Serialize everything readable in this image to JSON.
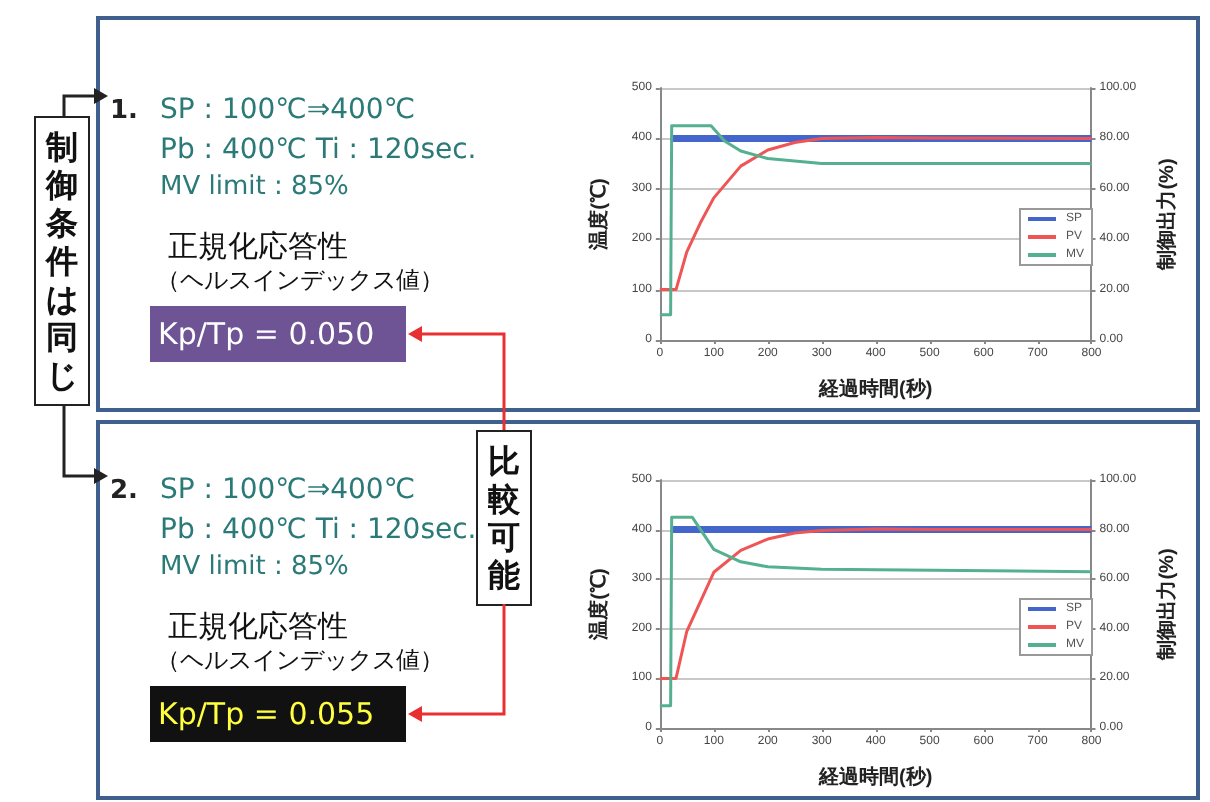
{
  "chart_data": [
    {
      "type": "other",
      "annotations": [
        "1.",
        "SP : 100℃⇒400℃",
        "Pb : 400℃  Ti : 120sec.",
        "MV limit : 85%",
        "正規化応答性",
        "（ヘルスインデックス値）",
        "Kp/Tp = 0.050",
        "制御条件は同じ"
      ]
    },
    {
      "type": "line",
      "xlabel": "経過時間(秒)",
      "ylabel": "温度(℃)",
      "y2label": "制御出力(%)",
      "xlim": [
        0,
        800
      ],
      "xticks": [
        0,
        100,
        200,
        300,
        400,
        500,
        600,
        700,
        800
      ],
      "ylim": [
        0,
        500
      ],
      "yticks": [
        0,
        100,
        200,
        300,
        400,
        500
      ],
      "y2lim": [
        0,
        100
      ],
      "y2ticks": [
        {
          "value": 0,
          "label": "0.00"
        },
        {
          "value": 20,
          "label": "20.00"
        },
        {
          "value": 40,
          "label": "40.00"
        },
        {
          "value": 60,
          "label": "60.00"
        },
        {
          "value": 80,
          "label": "80.00"
        },
        {
          "value": 100,
          "label": "100.00"
        }
      ],
      "grid": "y",
      "legend": "right",
      "series": [
        {
          "name": "SP",
          "color": "#4466cc",
          "x": [
            20,
            800
          ],
          "values": [
            400,
            400
          ]
        },
        {
          "name": "PV",
          "color": "#f05555",
          "x": [
            0,
            30,
            50,
            75,
            100,
            150,
            200,
            250,
            300,
            400,
            500,
            800
          ],
          "values": [
            100,
            100,
            175,
            232,
            282,
            345,
            377,
            392,
            400,
            402,
            401,
            400
          ]
        },
        {
          "name": "MV",
          "color": "#55b090",
          "axis": "y2",
          "x": [
            0,
            20,
            22,
            95,
            120,
            150,
            200,
            250,
            300,
            800
          ],
          "values": [
            10,
            10,
            85,
            85,
            79,
            75,
            72,
            71,
            70,
            70
          ]
        }
      ]
    },
    {
      "type": "other",
      "annotations": [
        "2.",
        "SP : 100℃⇒400℃",
        "Pb : 400℃  Ti : 120sec.",
        "MV limit : 85%",
        "正規化応答性",
        "（ヘルスインデックス値）",
        "Kp/Tp = 0.055",
        "比較可能"
      ]
    },
    {
      "type": "line",
      "xlabel": "経過時間(秒)",
      "ylabel": "温度(℃)",
      "y2label": "制御出力(%)",
      "xlim": [
        0,
        800
      ],
      "xticks": [
        0,
        100,
        200,
        300,
        400,
        500,
        600,
        700,
        800
      ],
      "ylim": [
        0,
        500
      ],
      "yticks": [
        0,
        100,
        200,
        300,
        400,
        500
      ],
      "y2lim": [
        0,
        100
      ],
      "y2ticks": [
        {
          "value": 0,
          "label": "0.00"
        },
        {
          "value": 20,
          "label": "20.00"
        },
        {
          "value": 40,
          "label": "40.00"
        },
        {
          "value": 60,
          "label": "60.00"
        },
        {
          "value": 80,
          "label": "80.00"
        },
        {
          "value": 100,
          "label": "100.00"
        }
      ],
      "grid": "y",
      "legend": "right",
      "series": [
        {
          "name": "SP",
          "color": "#4466cc",
          "x": [
            20,
            800
          ],
          "values": [
            400,
            400
          ]
        },
        {
          "name": "PV",
          "color": "#f05555",
          "x": [
            0,
            30,
            50,
            100,
            150,
            200,
            250,
            300,
            400,
            500,
            800
          ],
          "values": [
            100,
            100,
            195,
            314,
            358,
            381,
            393,
            398,
            401,
            400,
            400
          ]
        },
        {
          "name": "MV",
          "color": "#55b090",
          "axis": "y2",
          "x": [
            0,
            20,
            22,
            60,
            100,
            150,
            200,
            300,
            800
          ],
          "values": [
            9,
            9,
            85,
            85,
            72,
            67,
            65,
            64,
            63
          ]
        }
      ]
    }
  ]
}
